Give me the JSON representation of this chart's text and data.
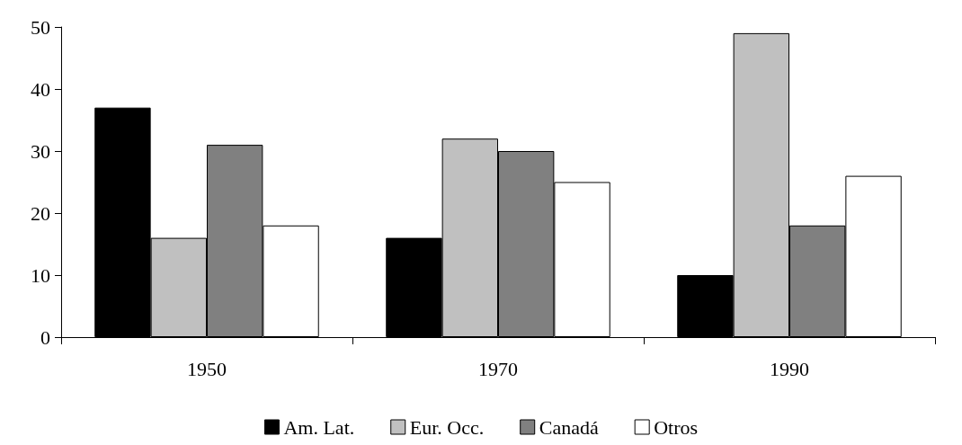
{
  "chart_data": {
    "type": "bar",
    "categories": [
      "1950",
      "1970",
      "1990"
    ],
    "series": [
      {
        "name": "Am. Lat.",
        "color": "#000000",
        "values": [
          37,
          16,
          10
        ]
      },
      {
        "name": "Eur. Occ.",
        "color": "#c0c0c0",
        "values": [
          16,
          32,
          49
        ]
      },
      {
        "name": "Canadá",
        "color": "#808080",
        "values": [
          31,
          30,
          18
        ]
      },
      {
        "name": "Otros",
        "color": "#ffffff",
        "values": [
          18,
          25,
          26
        ]
      }
    ],
    "ylim": [
      0,
      50
    ],
    "yticks": [
      0,
      10,
      20,
      30,
      40,
      50
    ],
    "grid": false,
    "legend": "bottom"
  }
}
